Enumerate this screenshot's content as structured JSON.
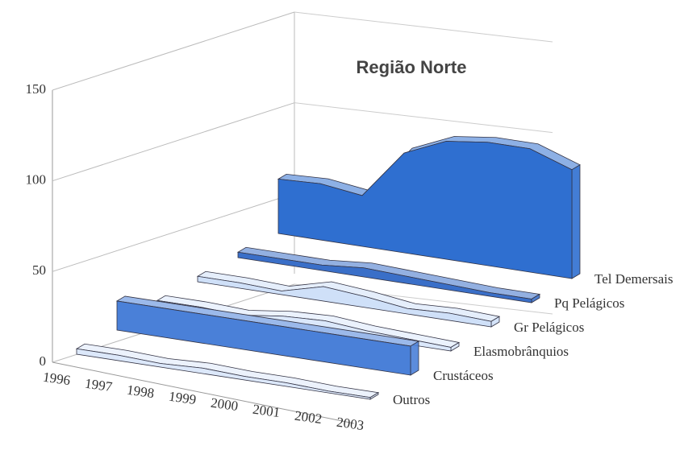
{
  "chart_data": {
    "type": "area3d",
    "title": "Região Norte",
    "categories": [
      "1996",
      "1997",
      "1998",
      "1999",
      "2000",
      "2001",
      "2002",
      "2003"
    ],
    "ylim": [
      0,
      150
    ],
    "yticks": [
      0,
      50,
      100,
      150
    ],
    "grid": true,
    "series": [
      {
        "name": "Outros",
        "color": "#dce8fa",
        "values": [
          3,
          3,
          2,
          3,
          2,
          2,
          1,
          1
        ]
      },
      {
        "name": "Crustáceos",
        "color": "#4a80d8",
        "values": [
          16,
          16,
          16,
          16,
          16,
          16,
          16,
          16
        ]
      },
      {
        "name": "Elasmobrânquios",
        "color": "#dbe8fb",
        "values": [
          3,
          3,
          2,
          5,
          6,
          4,
          3,
          2
        ]
      },
      {
        "name": "Gr Pelágicos",
        "color": "#cfe0f8",
        "values": [
          3,
          3,
          2,
          8,
          6,
          3,
          4,
          3
        ]
      },
      {
        "name": "Pq Pelágicos",
        "color": "#3a6fc8",
        "values": [
          3,
          3,
          3,
          5,
          4,
          3,
          2,
          2
        ]
      },
      {
        "name": "Tel Demersais",
        "color": "#2f6fd0",
        "values": [
          30,
          31,
          28,
          55,
          65,
          68,
          68,
          60
        ]
      }
    ]
  }
}
